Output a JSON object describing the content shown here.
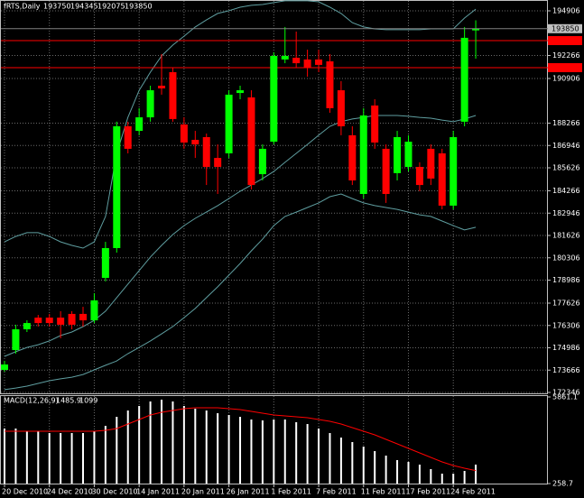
{
  "chart_data": [
    {
      "type": "candlestick",
      "title": "fRTS,Daily",
      "categories": [
        "20 Dec 2010",
        null,
        null,
        null,
        "24 Dec 2010",
        null,
        null,
        null,
        "30 Dec 2010",
        null,
        null,
        null,
        "14 Jan 2011",
        null,
        null,
        null,
        "20 Jan 2011",
        null,
        null,
        null,
        "26 Jan 2011",
        null,
        null,
        null,
        "1 Feb 2011",
        null,
        null,
        null,
        "7 Feb 2011",
        null,
        null,
        null,
        "11 Feb 2011",
        null,
        null,
        null,
        "17 Feb 2011",
        null,
        null,
        null,
        "24 Feb 2011",
        null,
        null
      ],
      "open": [
        173680,
        174850,
        176080,
        176770,
        176770,
        176770,
        176990,
        176990,
        176610,
        179120,
        180880,
        188080,
        187810,
        188610,
        190480,
        191280,
        188190,
        187280,
        187440,
        186210,
        186480,
        190050,
        189790,
        185250,
        187170,
        192030,
        192130,
        192030,
        192030,
        191920,
        190210,
        187550,
        184080,
        189310,
        186750,
        185310,
        185680,
        185680,
        186750,
        186480,
        183390,
        188350,
        193750
      ],
      "high": [
        174210,
        176350,
        176610,
        176930,
        176990,
        177150,
        177150,
        177410,
        178210,
        181250,
        188350,
        188350,
        189150,
        190480,
        192350,
        191550,
        188610,
        187810,
        187650,
        187010,
        190210,
        190480,
        190210,
        187010,
        192450,
        193950,
        193680,
        192610,
        192610,
        192350,
        190750,
        188080,
        189150,
        189680,
        187010,
        187810,
        187550,
        185950,
        187010,
        186750,
        187810,
        193950,
        194345
      ],
      "low": [
        173570,
        174640,
        175920,
        176240,
        176240,
        175550,
        176080,
        176240,
        176450,
        178910,
        180610,
        186480,
        187550,
        188350,
        189950,
        188350,
        186750,
        186210,
        184610,
        184080,
        186210,
        189680,
        184350,
        184880,
        187010,
        191810,
        191550,
        191010,
        191280,
        188880,
        187550,
        184610,
        183810,
        186750,
        183550,
        184880,
        185410,
        184240,
        184610,
        183170,
        183170,
        188080,
        192075
      ],
      "close": [
        174000,
        176080,
        176450,
        176450,
        176450,
        176350,
        176350,
        176610,
        177790,
        180880,
        188080,
        186750,
        188610,
        190210,
        190320,
        188510,
        187120,
        187010,
        185680,
        185680,
        189950,
        190210,
        184610,
        186750,
        192240,
        192240,
        191810,
        191550,
        191710,
        189150,
        188080,
        184880,
        188720,
        187120,
        184080,
        187440,
        187170,
        184610,
        184990,
        183390,
        187440,
        193310,
        193850
      ],
      "colors": {
        "up": "#00ff00",
        "down": "#ff0000"
      },
      "bands": {
        "upper": [
          181250,
          181570,
          181790,
          181790,
          181570,
          181250,
          181040,
          180880,
          181250,
          182750,
          186480,
          188610,
          190210,
          191280,
          192240,
          192880,
          193410,
          193950,
          194370,
          194750,
          194910,
          195120,
          195230,
          195280,
          195390,
          195500,
          195500,
          195500,
          195440,
          195120,
          194750,
          194210,
          193950,
          193840,
          193790,
          193790,
          193790,
          193790,
          193840,
          193840,
          193840,
          194480,
          195010
        ],
        "middle": [
          174480,
          174750,
          175010,
          175170,
          175390,
          175710,
          175920,
          176240,
          176610,
          177150,
          177950,
          178750,
          179550,
          180350,
          181040,
          181680,
          182210,
          182640,
          183010,
          183390,
          183810,
          184240,
          184610,
          184990,
          185410,
          185950,
          186480,
          187010,
          187550,
          188080,
          188350,
          188510,
          188610,
          188720,
          188720,
          188720,
          188670,
          188610,
          188560,
          188450,
          188350,
          188510,
          188720
        ],
        "lower": [
          172510,
          172610,
          172720,
          172880,
          173040,
          173150,
          173250,
          173410,
          173680,
          173950,
          174210,
          174640,
          175010,
          175390,
          175810,
          176240,
          176770,
          177310,
          177950,
          178590,
          179280,
          179970,
          180720,
          181410,
          182210,
          182750,
          183010,
          183280,
          183550,
          183920,
          184080,
          183810,
          183550,
          183390,
          183280,
          183170,
          183010,
          182850,
          182750,
          182480,
          182210,
          181950,
          182110
        ]
      },
      "band_color": "#5f9ea0",
      "levels": [
        193146,
        191546
      ],
      "level_color": "#ff0000",
      "ylim": [
        172240,
        195546
      ],
      "yticks": [
        194906,
        192266,
        190906,
        188266,
        186946,
        185626,
        184266,
        182946,
        181626,
        180306,
        178986,
        177626,
        176306,
        174986,
        173666,
        172346
      ],
      "grid": true
    },
    {
      "type": "bar",
      "title": "MACD(12,26,9)",
      "values": [
        3819,
        3819,
        3644,
        3644,
        3527,
        3527,
        3527,
        3527,
        3644,
        3994,
        4578,
        4986,
        5278,
        5570,
        5686,
        5570,
        5278,
        5103,
        4986,
        4811,
        4694,
        4578,
        4403,
        4344,
        4403,
        4403,
        4227,
        4111,
        3819,
        3527,
        3235,
        2944,
        2652,
        2360,
        2068,
        1776,
        1660,
        1485,
        1193,
        901,
        901,
        1076,
        1485.9
      ],
      "color": "#ffffff",
      "signal": [
        3644,
        3644,
        3644,
        3644,
        3644,
        3644,
        3644,
        3644,
        3644,
        3702,
        3819,
        4111,
        4403,
        4694,
        4869,
        4986,
        5103,
        5161,
        5161,
        5161,
        5103,
        5045,
        4928,
        4811,
        4694,
        4636,
        4578,
        4519,
        4403,
        4286,
        4111,
        3877,
        3644,
        3410,
        3119,
        2827,
        2535,
        2243,
        1951,
        1660,
        1426,
        1251,
        1099.0
      ],
      "signal_color": "#ff0000",
      "ylim": [
        258.7,
        5861.1
      ],
      "yticks": [
        5861.1,
        258.7
      ]
    }
  ]
}
